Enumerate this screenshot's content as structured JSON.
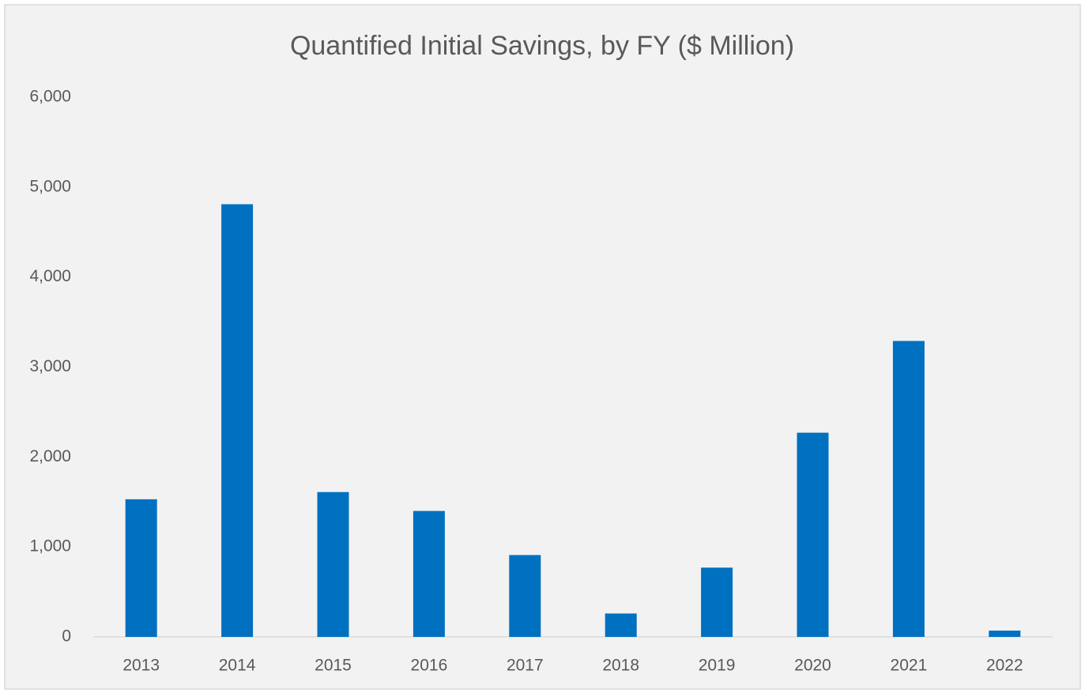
{
  "chart_data": {
    "type": "bar",
    "title": "Quantified Initial Savings, by FY ($ Million)",
    "categories": [
      "2013",
      "2014",
      "2015",
      "2016",
      "2017",
      "2018",
      "2019",
      "2020",
      "2021",
      "2022"
    ],
    "values": [
      1530,
      4810,
      1610,
      1400,
      910,
      260,
      770,
      2270,
      3290,
      70
    ],
    "color": "#0070c0",
    "ylim": [
      0,
      6000
    ],
    "yticks": [
      0,
      {
        "value": 1000,
        "label": "1,000"
      },
      {
        "value": 2000,
        "label": "2,000"
      },
      {
        "value": 3000,
        "label": "3,000"
      },
      {
        "value": 4000,
        "label": "4,000"
      },
      {
        "value": 5000,
        "label": "5,000"
      },
      {
        "value": 6000,
        "label": "6,000"
      }
    ],
    "grid": false
  }
}
